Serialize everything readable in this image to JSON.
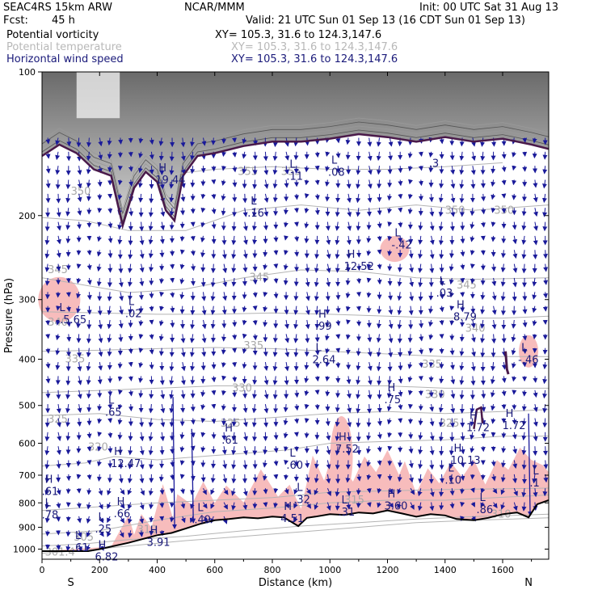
{
  "header": {
    "model": "SEAC4RS 15km ARW",
    "fcst_label": "Fcst:",
    "fcst_value": "45 h",
    "center": "NCAR/MMM",
    "init": "Init: 00 UTC Sat 31 Aug 13",
    "valid": "Valid: 21 UTC Sun 01 Sep 13 (16 CDT Sun 01 Sep 13)",
    "fields": [
      {
        "name": "Potential vorticity",
        "xy": "XY= 105.3, 31.6 to 124.3,147.6",
        "color": "#000000"
      },
      {
        "name": "Potential temperature",
        "xy": "XY= 105.3, 31.6 to 124.3,147.6",
        "color": "#b8b8b8"
      },
      {
        "name": "Horizontal wind speed",
        "xy": "XY= 105.3, 31.6 to 124.3,147.6",
        "color": "#1a1a7a"
      }
    ]
  },
  "chart_data": {
    "type": "cross-section",
    "xlabel": "Distance (km)",
    "ylabel": "Pressure (hPa)",
    "xlim": [
      0,
      1760
    ],
    "ylim": [
      1050,
      100
    ],
    "y_scale": "log",
    "x_ticks": [
      "0",
      "200",
      "400",
      "600",
      "800",
      "1000",
      "1200",
      "1400",
      "1600"
    ],
    "y_ticks": [
      "100",
      "200",
      "300",
      "400",
      "500",
      "600",
      "700",
      "800",
      "900",
      "1000"
    ],
    "end_labels": {
      "left": "S",
      "right": "N"
    },
    "colors": {
      "theta": "#b4b4b4",
      "wind": "#1a1a9a",
      "pv_fill": "#f7bcbc",
      "terrain": "#000000",
      "tropopause": "#4a1a4a"
    },
    "theta_isentropes": [
      {
        "value": "301.4",
        "points": [
          [
            0,
            1020
          ],
          [
            160,
            1005
          ],
          [
            300,
            985
          ],
          [
            500,
            960
          ],
          [
            700,
            940
          ],
          [
            900,
            920
          ],
          [
            1100,
            900
          ],
          [
            1300,
            880
          ],
          [
            1500,
            870
          ],
          [
            1760,
            860
          ]
        ],
        "labels": [
          [
            10,
            1015
          ]
        ]
      },
      {
        "value": "305",
        "points": [
          [
            0,
            985
          ],
          [
            150,
            975
          ],
          [
            300,
            955
          ],
          [
            500,
            940
          ],
          [
            700,
            915
          ],
          [
            900,
            895
          ],
          [
            1100,
            880
          ],
          [
            1300,
            865
          ],
          [
            1500,
            855
          ],
          [
            1760,
            845
          ]
        ],
        "labels": [
          [
            110,
            945
          ]
        ]
      },
      {
        "value": "310",
        "points": [
          [
            0,
            930
          ],
          [
            200,
            915
          ],
          [
            400,
            870
          ],
          [
            600,
            835
          ],
          [
            800,
            820
          ],
          [
            1000,
            800
          ],
          [
            1200,
            790
          ],
          [
            1400,
            790
          ],
          [
            1760,
            770
          ]
        ],
        "labels": [
          [
            330,
            910
          ],
          [
            1560,
            845
          ]
        ]
      },
      {
        "value": "315",
        "points": [
          [
            0,
            830
          ],
          [
            200,
            815
          ],
          [
            400,
            800
          ],
          [
            600,
            790
          ],
          [
            800,
            780
          ],
          [
            1000,
            760
          ],
          [
            1200,
            755
          ],
          [
            1400,
            750
          ],
          [
            1760,
            745
          ]
        ],
        "labels": [
          [
            1050,
            790
          ]
        ]
      },
      {
        "value": "320",
        "points": [
          [
            0,
            670
          ],
          [
            150,
            660
          ],
          [
            250,
            640
          ],
          [
            400,
            650
          ],
          [
            550,
            640
          ],
          [
            700,
            630
          ],
          [
            850,
            620
          ],
          [
            1000,
            600
          ],
          [
            1200,
            595
          ],
          [
            1400,
            590
          ],
          [
            1600,
            580
          ],
          [
            1760,
            580
          ]
        ],
        "labels": [
          [
            160,
            612
          ]
        ]
      },
      {
        "value": "325",
        "points": [
          [
            0,
            525
          ],
          [
            200,
            520
          ],
          [
            400,
            535
          ],
          [
            600,
            540
          ],
          [
            800,
            530
          ],
          [
            1000,
            520
          ],
          [
            1200,
            515
          ],
          [
            1400,
            520
          ],
          [
            1600,
            515
          ],
          [
            1760,
            510
          ]
        ],
        "labels": [
          [
            20,
            535
          ],
          [
            620,
            545
          ],
          [
            1380,
            545
          ]
        ]
      },
      {
        "value": "330",
        "points": [
          [
            0,
            470
          ],
          [
            200,
            465
          ],
          [
            400,
            460
          ],
          [
            600,
            455
          ],
          [
            800,
            455
          ],
          [
            1000,
            455
          ],
          [
            1200,
            455
          ],
          [
            1400,
            460
          ],
          [
            1600,
            460
          ],
          [
            1760,
            460
          ]
        ],
        "labels": [
          [
            660,
            460
          ],
          [
            1330,
            475
          ]
        ]
      },
      {
        "value": "335",
        "points": [
          [
            0,
            385
          ],
          [
            200,
            383
          ],
          [
            400,
            380
          ],
          [
            600,
            378
          ],
          [
            800,
            380
          ],
          [
            1000,
            385
          ],
          [
            1200,
            390
          ],
          [
            1400,
            395
          ],
          [
            1600,
            395
          ],
          [
            1760,
            395
          ]
        ],
        "labels": [
          [
            80,
            400
          ],
          [
            700,
            375
          ],
          [
            1320,
            410
          ]
        ]
      },
      {
        "value": "340",
        "points": [
          [
            0,
            318
          ],
          [
            200,
            320
          ],
          [
            400,
            322
          ],
          [
            600,
            322
          ],
          [
            800,
            320
          ],
          [
            1000,
            322
          ],
          [
            1200,
            325
          ],
          [
            1400,
            328
          ],
          [
            1600,
            328
          ],
          [
            1760,
            325
          ]
        ],
        "labels": [
          [
            20,
            335
          ],
          [
            1470,
            345
          ]
        ]
      },
      {
        "value": "345",
        "points": [
          [
            0,
            270
          ],
          [
            150,
            280
          ],
          [
            300,
            290
          ],
          [
            500,
            285
          ],
          [
            700,
            270
          ],
          [
            900,
            260
          ],
          [
            1100,
            262
          ],
          [
            1300,
            270
          ],
          [
            1500,
            272
          ],
          [
            1760,
            270
          ]
        ],
        "labels": [
          [
            20,
            260
          ],
          [
            720,
            270
          ],
          [
            1440,
            280
          ]
        ]
      },
      {
        "value": "350",
        "points": [
          [
            0,
            202
          ],
          [
            150,
            205
          ],
          [
            300,
            215
          ],
          [
            500,
            215
          ],
          [
            700,
            195
          ],
          [
            900,
            190
          ],
          [
            1100,
            195
          ],
          [
            1300,
            190
          ],
          [
            1500,
            195
          ],
          [
            1760,
            190
          ]
        ],
        "labels": [
          [
            100,
            178
          ],
          [
            1400,
            195
          ],
          [
            1570,
            195
          ]
        ]
      },
      {
        "value": "355",
        "points": [
          [
            400,
            165
          ],
          [
            600,
            160
          ],
          [
            800,
            158
          ],
          [
            1000,
            160
          ],
          [
            1200,
            160
          ],
          [
            1400,
            158
          ],
          [
            1600,
            155
          ]
        ],
        "labels": [
          [
            680,
            162
          ],
          [
            830,
            162
          ]
        ]
      }
    ],
    "extrema": [
      {
        "mark": "L",
        "value": "-.5.65",
        "x": 60,
        "p": 330
      },
      {
        "mark": "L",
        "value": ".02",
        "x": 300,
        "p": 320
      },
      {
        "mark": "H",
        "value": "19.44",
        "x": 405,
        "p": 168
      },
      {
        "mark": "L",
        "value": ".16",
        "x": 725,
        "p": 197
      },
      {
        "mark": "L",
        "value": ".11",
        "x": 860,
        "p": 165
      },
      {
        "mark": "L",
        "value": ".08",
        "x": 1005,
        "p": 162
      },
      {
        "mark": "H",
        "value": "12.52",
        "x": 1060,
        "p": 255
      },
      {
        "mark": "L",
        "value": "-.42",
        "x": 1225,
        "p": 230
      },
      {
        "mark": "",
        "value": ".3",
        "x": 1355,
        "p": 155
      },
      {
        "mark": "L",
        "value": ".03",
        "x": 1380,
        "p": 290
      },
      {
        "mark": "H",
        "value": "8.79",
        "x": 1440,
        "p": 325
      },
      {
        "mark": "H",
        "value": ".99",
        "x": 960,
        "p": 340
      },
      {
        "mark": "L",
        "value": "2.64",
        "x": 950,
        "p": 400
      },
      {
        "mark": "L",
        "value": "-.46",
        "x": 1665,
        "p": 400
      },
      {
        "mark": "H",
        "value": ".75",
        "x": 1200,
        "p": 485
      },
      {
        "mark": "L",
        "value": ".65",
        "x": 230,
        "p": 515
      },
      {
        "mark": "H",
        "value": "1.72",
        "x": 1485,
        "p": 555
      },
      {
        "mark": "H",
        "value": "1.72",
        "x": 1610,
        "p": 550
      },
      {
        "mark": "H",
        "value": ".61",
        "x": 635,
        "p": 590
      },
      {
        "mark": "H",
        "value": "7.52",
        "x": 1030,
        "p": 615
      },
      {
        "mark": "H",
        "value": "12.47",
        "x": 250,
        "p": 660
      },
      {
        "mark": "L",
        "value": ".60",
        "x": 860,
        "p": 665
      },
      {
        "mark": "H",
        "value": "10.13",
        "x": 1430,
        "p": 650
      },
      {
        "mark": "L",
        "value": ".10",
        "x": 1410,
        "p": 715
      },
      {
        "mark": "L",
        "value": ".1",
        "x": 1705,
        "p": 725
      },
      {
        "mark": "H",
        "value": ".61",
        "x": 10,
        "p": 755
      },
      {
        "mark": "L",
        "value": ".32",
        "x": 885,
        "p": 785
      },
      {
        "mark": "H",
        "value": "3.60",
        "x": 1200,
        "p": 810
      },
      {
        "mark": "L",
        "value": ".31",
        "x": 1040,
        "p": 835
      },
      {
        "mark": "L",
        "value": ".78",
        "x": 10,
        "p": 845
      },
      {
        "mark": "H",
        "value": ".66",
        "x": 260,
        "p": 840
      },
      {
        "mark": "L",
        "value": ".49",
        "x": 540,
        "p": 865
      },
      {
        "mark": "H",
        "value": "4.51",
        "x": 840,
        "p": 860
      },
      {
        "mark": "L",
        "value": ".86",
        "x": 1520,
        "p": 825
      },
      {
        "mark": "L",
        "value": ".25",
        "x": 195,
        "p": 905
      },
      {
        "mark": "H",
        "value": "3.91",
        "x": 375,
        "p": 965
      },
      {
        "mark": "L",
        "value": ".61",
        "x": 115,
        "p": 990
      },
      {
        "mark": "H",
        "value": "6.82",
        "x": 195,
        "p": 1035
      }
    ]
  }
}
